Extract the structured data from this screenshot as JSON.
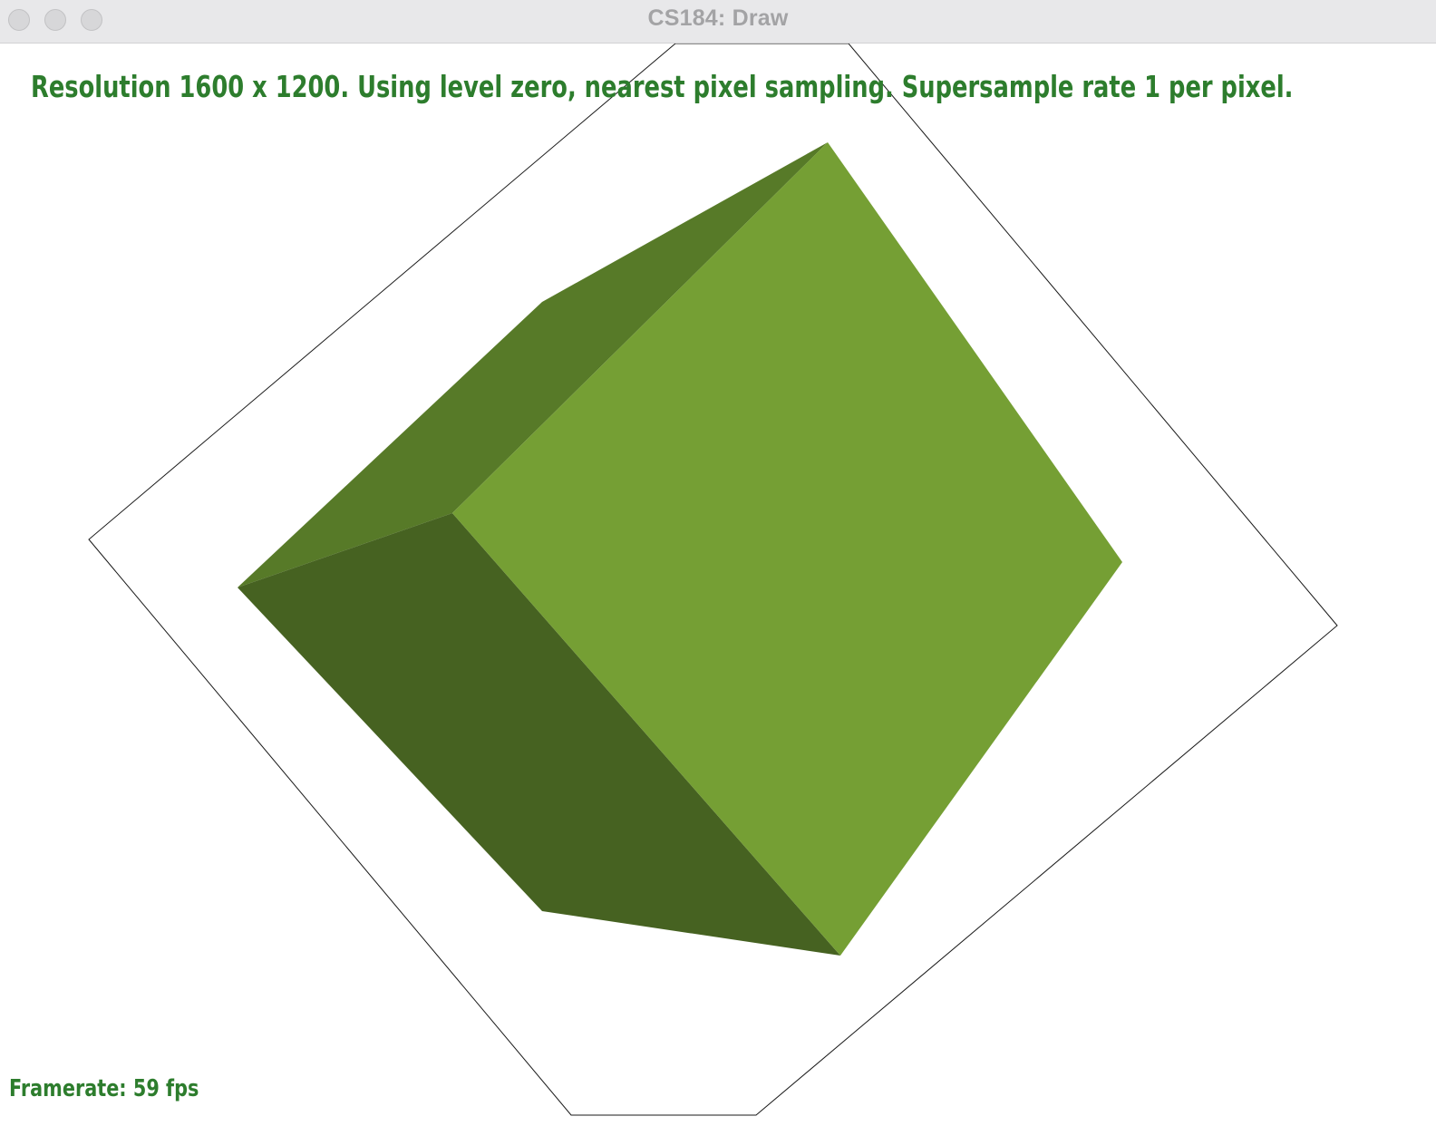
{
  "window": {
    "title": "CS184: Draw"
  },
  "overlay": {
    "status_text": "Resolution 1600 x 1200. Using level zero, nearest pixel sampling. Supersample rate 1 per pixel.",
    "framerate_text": "Framerate: 59 fps",
    "text_color": "#2d7d2d"
  },
  "scene": {
    "colors": {
      "face_front": "#759f34",
      "face_top": "#577a28",
      "face_left": "#466221",
      "outline": "#1a1a1a"
    }
  }
}
